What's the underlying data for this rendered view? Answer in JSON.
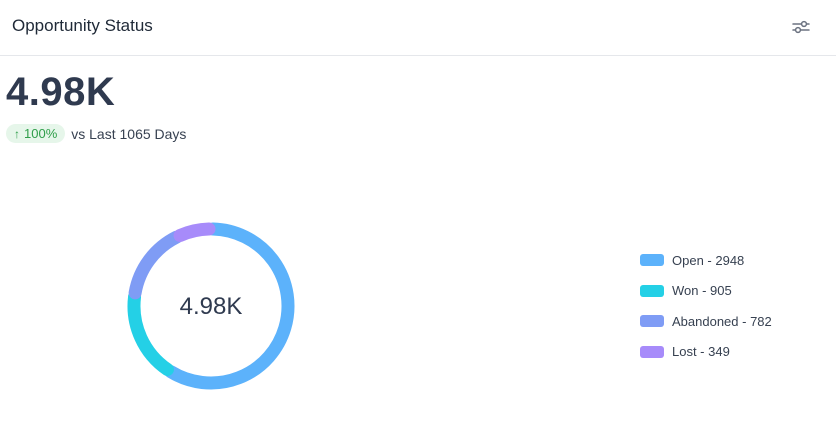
{
  "header": {
    "title": "Opportunity Status",
    "settings_icon": "sliders-icon"
  },
  "summary": {
    "total": "4.98K",
    "trend_arrow": "↑",
    "trend_percent": "100%",
    "compare_text": "vs Last 1065 Days",
    "trend_color": "#2f9e4a"
  },
  "chart_data": {
    "type": "pie",
    "center_label": "4.98K",
    "legend_position": "right",
    "categories": [
      "Open",
      "Won",
      "Abandoned",
      "Lost"
    ],
    "values": [
      2948,
      905,
      782,
      349
    ],
    "colors": [
      "#5cb2fb",
      "#24d0e6",
      "#7f9cf5",
      "#a78bfa"
    ],
    "legend_labels": [
      "Open - 2948",
      "Won - 905",
      "Abandoned - 782",
      "Lost - 349"
    ]
  }
}
